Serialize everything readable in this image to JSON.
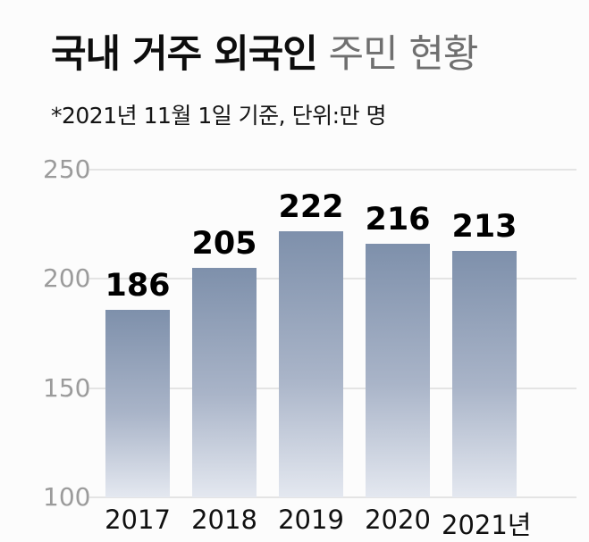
{
  "title": {
    "bold": "국내 거주 외국인",
    "light": " 주민 현황"
  },
  "subtitle": "*2021년 11월 1일 기준, 단위:만 명",
  "chart_data": {
    "type": "bar",
    "title": "국내 거주 외국인 주민 현황",
    "subtitle_note": "*2021년 11월 1일 기준, 단위:만 명",
    "categories": [
      "2017",
      "2018",
      "2019",
      "2020",
      "2021년"
    ],
    "values": [
      186,
      205,
      222,
      216,
      213
    ],
    "xlabel": "",
    "ylabel": "",
    "ylim": [
      100,
      250
    ],
    "yticks": [
      250,
      200,
      150,
      100
    ],
    "grid": true,
    "legend": false,
    "bar_color_top": "#7e90ab",
    "bar_color_bottom": "#e4e8f0",
    "value_label_color": "#000000",
    "ytick_color": "#9b9b9b",
    "gridline_color": "#e4e4e4"
  }
}
